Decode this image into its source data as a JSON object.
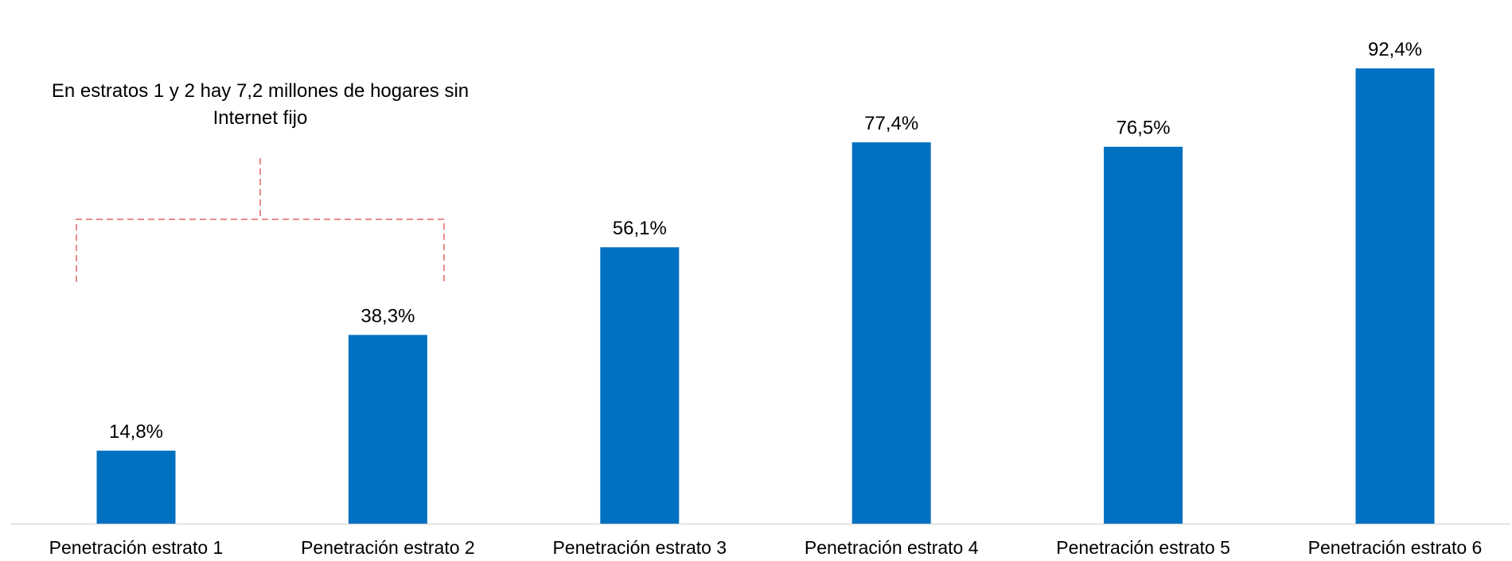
{
  "chart_data": {
    "type": "bar",
    "categories": [
      "Penetración estrato 1",
      "Penetración estrato 2",
      "Penetración estrato 3",
      "Penetración estrato 4",
      "Penetración estrato 5",
      "Penetración estrato 6"
    ],
    "values": [
      14.8,
      38.3,
      56.1,
      77.4,
      76.5,
      92.4
    ],
    "data_labels": [
      "14,8%",
      "38,3%",
      "56,1%",
      "77,4%",
      "76,5%",
      "92,4%"
    ],
    "ylim": [
      0,
      100
    ],
    "bar_color": "#0070C0",
    "grid": false,
    "legend": "none",
    "title": "",
    "xlabel": "",
    "ylabel": "",
    "annotation": {
      "lines": [
        "En estratos 1 y 2 hay 7,2 millones de hogares sin",
        "Internet fijo"
      ],
      "bracket_color": "#E06666",
      "spans_categories": [
        0,
        1
      ]
    }
  }
}
